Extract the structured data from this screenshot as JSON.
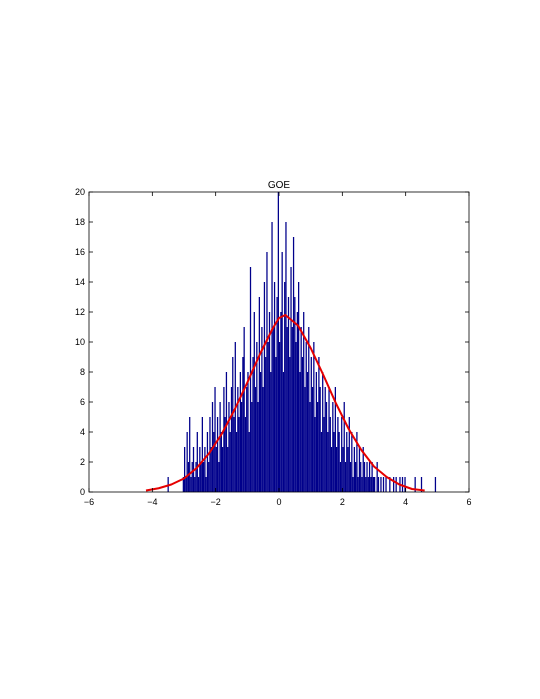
{
  "chart_data": {
    "type": "bar",
    "title": "GOE",
    "xlabel": "",
    "ylabel": "",
    "xlim": [
      -6,
      6
    ],
    "ylim": [
      0,
      20
    ],
    "x_ticks": [
      -6,
      -4,
      -2,
      0,
      2,
      4,
      6
    ],
    "y_ticks": [
      0,
      2,
      4,
      6,
      8,
      10,
      12,
      14,
      16,
      18,
      20
    ],
    "x_tick_labels": [
      "−6",
      "−4",
      "−2",
      "0",
      "2",
      "4",
      "6"
    ],
    "y_tick_labels": [
      "0",
      "2",
      "4",
      "6",
      "8",
      "10",
      "12",
      "14",
      "16",
      "18",
      "20"
    ],
    "grid": false,
    "bin_width": 0.04,
    "bar_color": "#00008b",
    "curve_color": "#e60000",
    "bins": [
      {
        "x": -3.5,
        "v": 1
      },
      {
        "x": -3.02,
        "v": 1
      },
      {
        "x": -2.98,
        "v": 3
      },
      {
        "x": -2.94,
        "v": 1
      },
      {
        "x": -2.9,
        "v": 4
      },
      {
        "x": -2.86,
        "v": 2
      },
      {
        "x": -2.82,
        "v": 5
      },
      {
        "x": -2.78,
        "v": 1
      },
      {
        "x": -2.74,
        "v": 2
      },
      {
        "x": -2.7,
        "v": 3
      },
      {
        "x": -2.66,
        "v": 1
      },
      {
        "x": -2.62,
        "v": 2
      },
      {
        "x": -2.58,
        "v": 4
      },
      {
        "x": -2.54,
        "v": 1
      },
      {
        "x": -2.5,
        "v": 3
      },
      {
        "x": -2.46,
        "v": 2
      },
      {
        "x": -2.42,
        "v": 5
      },
      {
        "x": -2.38,
        "v": 2
      },
      {
        "x": -2.34,
        "v": 3
      },
      {
        "x": -2.3,
        "v": 1
      },
      {
        "x": -2.26,
        "v": 4
      },
      {
        "x": -2.22,
        "v": 2
      },
      {
        "x": -2.18,
        "v": 5
      },
      {
        "x": -2.14,
        "v": 3
      },
      {
        "x": -2.1,
        "v": 6
      },
      {
        "x": -2.06,
        "v": 4
      },
      {
        "x": -2.02,
        "v": 7
      },
      {
        "x": -1.98,
        "v": 3
      },
      {
        "x": -1.94,
        "v": 5
      },
      {
        "x": -1.9,
        "v": 2
      },
      {
        "x": -1.86,
        "v": 6
      },
      {
        "x": -1.82,
        "v": 4
      },
      {
        "x": -1.78,
        "v": 3
      },
      {
        "x": -1.74,
        "v": 7
      },
      {
        "x": -1.7,
        "v": 5
      },
      {
        "x": -1.66,
        "v": 8
      },
      {
        "x": -1.62,
        "v": 3
      },
      {
        "x": -1.58,
        "v": 6
      },
      {
        "x": -1.54,
        "v": 4
      },
      {
        "x": -1.5,
        "v": 7
      },
      {
        "x": -1.46,
        "v": 9
      },
      {
        "x": -1.42,
        "v": 5
      },
      {
        "x": -1.38,
        "v": 10
      },
      {
        "x": -1.34,
        "v": 4
      },
      {
        "x": -1.3,
        "v": 7
      },
      {
        "x": -1.26,
        "v": 5
      },
      {
        "x": -1.22,
        "v": 8
      },
      {
        "x": -1.18,
        "v": 6
      },
      {
        "x": -1.14,
        "v": 9
      },
      {
        "x": -1.1,
        "v": 11
      },
      {
        "x": -1.06,
        "v": 5
      },
      {
        "x": -1.02,
        "v": 7
      },
      {
        "x": -0.98,
        "v": 8
      },
      {
        "x": -0.94,
        "v": 4
      },
      {
        "x": -0.9,
        "v": 15
      },
      {
        "x": -0.86,
        "v": 6
      },
      {
        "x": -0.82,
        "v": 9
      },
      {
        "x": -0.78,
        "v": 12
      },
      {
        "x": -0.74,
        "v": 7
      },
      {
        "x": -0.7,
        "v": 10
      },
      {
        "x": -0.66,
        "v": 6
      },
      {
        "x": -0.62,
        "v": 13
      },
      {
        "x": -0.58,
        "v": 8
      },
      {
        "x": -0.54,
        "v": 11
      },
      {
        "x": -0.5,
        "v": 7
      },
      {
        "x": -0.46,
        "v": 14
      },
      {
        "x": -0.42,
        "v": 9
      },
      {
        "x": -0.38,
        "v": 16
      },
      {
        "x": -0.34,
        "v": 10
      },
      {
        "x": -0.3,
        "v": 12
      },
      {
        "x": -0.26,
        "v": 8
      },
      {
        "x": -0.22,
        "v": 18
      },
      {
        "x": -0.18,
        "v": 11
      },
      {
        "x": -0.14,
        "v": 14
      },
      {
        "x": -0.1,
        "v": 9
      },
      {
        "x": -0.06,
        "v": 13
      },
      {
        "x": -0.02,
        "v": 20
      },
      {
        "x": 0.02,
        "v": 10
      },
      {
        "x": 0.06,
        "v": 12
      },
      {
        "x": 0.1,
        "v": 16
      },
      {
        "x": 0.14,
        "v": 8
      },
      {
        "x": 0.18,
        "v": 14
      },
      {
        "x": 0.22,
        "v": 18
      },
      {
        "x": 0.26,
        "v": 11
      },
      {
        "x": 0.3,
        "v": 13
      },
      {
        "x": 0.34,
        "v": 9
      },
      {
        "x": 0.38,
        "v": 15
      },
      {
        "x": 0.42,
        "v": 11
      },
      {
        "x": 0.46,
        "v": 17
      },
      {
        "x": 0.5,
        "v": 13
      },
      {
        "x": 0.54,
        "v": 10
      },
      {
        "x": 0.58,
        "v": 12
      },
      {
        "x": 0.62,
        "v": 14
      },
      {
        "x": 0.66,
        "v": 8
      },
      {
        "x": 0.7,
        "v": 11
      },
      {
        "x": 0.74,
        "v": 9
      },
      {
        "x": 0.78,
        "v": 12
      },
      {
        "x": 0.82,
        "v": 7
      },
      {
        "x": 0.86,
        "v": 10
      },
      {
        "x": 0.9,
        "v": 8
      },
      {
        "x": 0.94,
        "v": 11
      },
      {
        "x": 0.98,
        "v": 6
      },
      {
        "x": 1.02,
        "v": 9
      },
      {
        "x": 1.06,
        "v": 7
      },
      {
        "x": 1.1,
        "v": 10
      },
      {
        "x": 1.14,
        "v": 5
      },
      {
        "x": 1.18,
        "v": 8
      },
      {
        "x": 1.22,
        "v": 6
      },
      {
        "x": 1.26,
        "v": 9
      },
      {
        "x": 1.3,
        "v": 7
      },
      {
        "x": 1.34,
        "v": 4
      },
      {
        "x": 1.38,
        "v": 8
      },
      {
        "x": 1.42,
        "v": 5
      },
      {
        "x": 1.46,
        "v": 7
      },
      {
        "x": 1.5,
        "v": 6
      },
      {
        "x": 1.54,
        "v": 4
      },
      {
        "x": 1.58,
        "v": 7
      },
      {
        "x": 1.62,
        "v": 5
      },
      {
        "x": 1.66,
        "v": 3
      },
      {
        "x": 1.7,
        "v": 6
      },
      {
        "x": 1.74,
        "v": 4
      },
      {
        "x": 1.78,
        "v": 7
      },
      {
        "x": 1.82,
        "v": 3
      },
      {
        "x": 1.86,
        "v": 5
      },
      {
        "x": 1.9,
        "v": 4
      },
      {
        "x": 1.94,
        "v": 2
      },
      {
        "x": 1.98,
        "v": 5
      },
      {
        "x": 2.02,
        "v": 3
      },
      {
        "x": 2.06,
        "v": 6
      },
      {
        "x": 2.1,
        "v": 2
      },
      {
        "x": 2.14,
        "v": 4
      },
      {
        "x": 2.18,
        "v": 3
      },
      {
        "x": 2.22,
        "v": 5
      },
      {
        "x": 2.26,
        "v": 2
      },
      {
        "x": 2.3,
        "v": 4
      },
      {
        "x": 2.34,
        "v": 1
      },
      {
        "x": 2.38,
        "v": 3
      },
      {
        "x": 2.42,
        "v": 2
      },
      {
        "x": 2.46,
        "v": 4
      },
      {
        "x": 2.5,
        "v": 1
      },
      {
        "x": 2.54,
        "v": 3
      },
      {
        "x": 2.58,
        "v": 2
      },
      {
        "x": 2.62,
        "v": 1
      },
      {
        "x": 2.66,
        "v": 3
      },
      {
        "x": 2.7,
        "v": 2
      },
      {
        "x": 2.74,
        "v": 1
      },
      {
        "x": 2.78,
        "v": 2
      },
      {
        "x": 2.82,
        "v": 1
      },
      {
        "x": 2.86,
        "v": 2
      },
      {
        "x": 2.9,
        "v": 1
      },
      {
        "x": 2.94,
        "v": 2
      },
      {
        "x": 2.98,
        "v": 1
      },
      {
        "x": 3.02,
        "v": 1
      },
      {
        "x": 3.1,
        "v": 2
      },
      {
        "x": 3.14,
        "v": 1
      },
      {
        "x": 3.22,
        "v": 1
      },
      {
        "x": 3.3,
        "v": 1
      },
      {
        "x": 3.38,
        "v": 1
      },
      {
        "x": 3.5,
        "v": 1
      },
      {
        "x": 3.62,
        "v": 1
      },
      {
        "x": 3.7,
        "v": 1
      },
      {
        "x": 3.82,
        "v": 1
      },
      {
        "x": 3.9,
        "v": 1
      },
      {
        "x": 3.98,
        "v": 1
      },
      {
        "x": 4.3,
        "v": 1
      },
      {
        "x": 4.5,
        "v": 1
      },
      {
        "x": 4.94,
        "v": 1
      }
    ],
    "curve": {
      "x": [
        -4.2,
        -3.8,
        -3.4,
        -3.0,
        -2.6,
        -2.2,
        -1.8,
        -1.4,
        -1.0,
        -0.6,
        -0.2,
        0.0,
        0.2,
        0.6,
        1.0,
        1.4,
        1.8,
        2.2,
        2.6,
        3.0,
        3.4,
        3.8,
        4.2,
        4.6
      ],
      "y": [
        0.1,
        0.25,
        0.5,
        0.9,
        1.6,
        2.6,
        3.9,
        5.5,
        7.3,
        9.2,
        10.9,
        11.6,
        11.8,
        11.1,
        9.6,
        7.8,
        5.9,
        4.2,
        2.8,
        1.7,
        1.0,
        0.5,
        0.2,
        0.1
      ]
    }
  }
}
